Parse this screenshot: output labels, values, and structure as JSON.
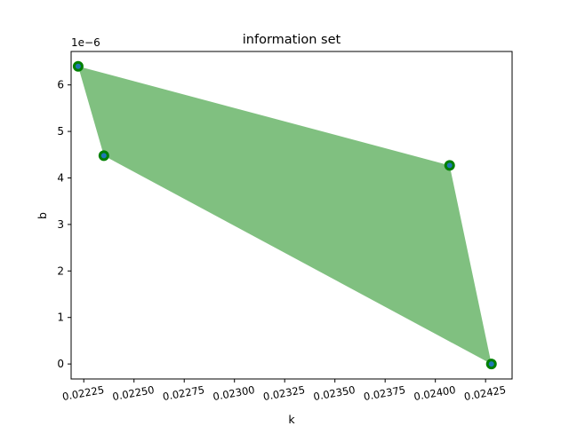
{
  "chart_data": {
    "type": "area",
    "title": "information set",
    "xlabel": "k",
    "ylabel": "b",
    "y_offset_label": "1e−6",
    "xlim": [
      0.022187,
      0.024382
    ],
    "ylim": [
      -3.22e-07,
      6.719e-06
    ],
    "xticks": [
      {
        "value": 0.02225,
        "label": "0.02225"
      },
      {
        "value": 0.0225,
        "label": "0.02250"
      },
      {
        "value": 0.02275,
        "label": "0.02275"
      },
      {
        "value": 0.023,
        "label": "0.02300"
      },
      {
        "value": 0.02325,
        "label": "0.02325"
      },
      {
        "value": 0.0235,
        "label": "0.02350"
      },
      {
        "value": 0.02375,
        "label": "0.02375"
      },
      {
        "value": 0.024,
        "label": "0.02400"
      },
      {
        "value": 0.02425,
        "label": "0.02425"
      }
    ],
    "yticks": [
      {
        "value": 0.0,
        "label": "0"
      },
      {
        "value": 1e-06,
        "label": "1"
      },
      {
        "value": 2e-06,
        "label": "2"
      },
      {
        "value": 3e-06,
        "label": "3"
      },
      {
        "value": 4e-06,
        "label": "4"
      },
      {
        "value": 5e-06,
        "label": "5"
      },
      {
        "value": 6e-06,
        "label": "6"
      }
    ],
    "polygon": {
      "fill_color": "#80c080",
      "points": [
        {
          "x": 0.022222,
          "y": 6.4e-06
        },
        {
          "x": 0.024071,
          "y": 4.27e-06
        },
        {
          "x": 0.024279,
          "y": 0.0
        },
        {
          "x": 0.02235,
          "y": 4.48e-06
        }
      ]
    },
    "vertices": {
      "outer_color": "#008000",
      "inner_color": "#1f77b4"
    },
    "grid": false
  }
}
